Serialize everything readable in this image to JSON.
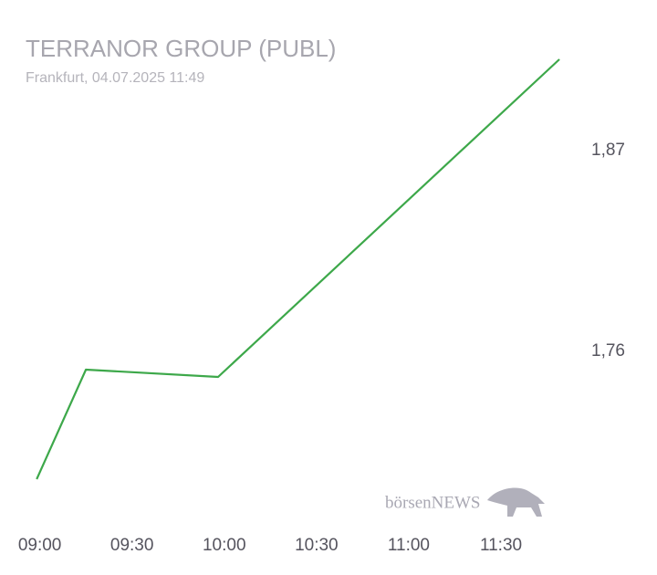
{
  "chart_data": {
    "type": "line",
    "title": "TERRANOR GROUP (PUBL)",
    "subtitle": "Frankfurt, 04.07.2025 11:49",
    "watermark": "börsenNEWS",
    "x": [
      "08:59",
      "09:15",
      "09:58",
      "11:49"
    ],
    "series": [
      {
        "color": "#3da84a",
        "values": [
          1.69,
          1.75,
          1.746,
          1.92
        ]
      }
    ],
    "xlim": [
      "08:53",
      "11:57"
    ],
    "xticks": [
      "09:00",
      "09:30",
      "10:00",
      "10:30",
      "11:00",
      "11:30"
    ],
    "ylim": [
      1.6725,
      1.9325
    ],
    "yticks": [
      {
        "value": 1.76,
        "label": "1,76"
      },
      {
        "value": 1.87,
        "label": "1,87"
      }
    ],
    "grid": false
  }
}
